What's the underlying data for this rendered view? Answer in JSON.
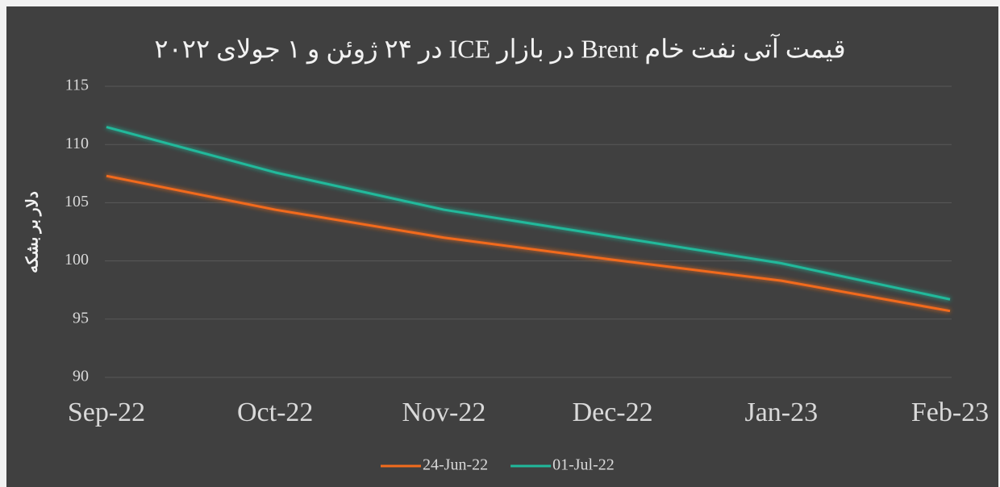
{
  "chart_data": {
    "type": "line",
    "title": "قیمت آتی نفت خام  Brent در بازار ICE در ۲۴ ژوئن و ۱ جولای ۲۰۲۲",
    "y_label": "دلار بر بشکه",
    "categories": [
      "Sep-22",
      "Oct-22",
      "Nov-22",
      "Dec-22",
      "Jan-23",
      "Feb-23"
    ],
    "series": [
      {
        "name": "24-Jun-22",
        "color": "#f26b1d",
        "values": [
          107.3,
          104.4,
          102.0,
          100.1,
          98.3,
          95.7
        ]
      },
      {
        "name": "01-Jul-22",
        "color": "#20b99b",
        "values": [
          111.5,
          107.6,
          104.4,
          102.1,
          99.8,
          96.7
        ]
      }
    ],
    "ylim": [
      90,
      115
    ],
    "yticks": [
      90,
      95,
      100,
      105,
      110,
      115
    ],
    "grid": true,
    "legend": "bottom"
  }
}
